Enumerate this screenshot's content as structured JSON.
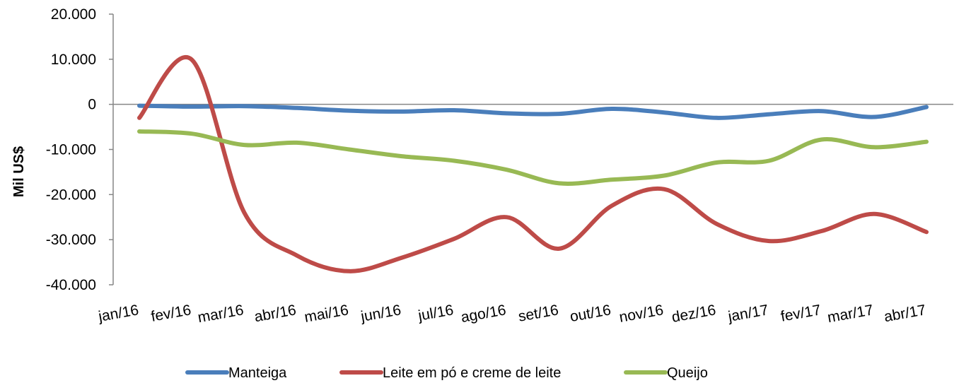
{
  "chart_data": {
    "type": "line",
    "ylabel": "Mil US$",
    "ylim": [
      -40000,
      20000
    ],
    "yticks": [
      20000,
      10000,
      0,
      -10000,
      -20000,
      -30000,
      -40000
    ],
    "ytick_labels": [
      "20.000",
      "10.000",
      "0",
      "-10.000",
      "-20.000",
      "-30.000",
      "-40.000"
    ],
    "categories": [
      "jan/16",
      "fev/16",
      "mar/16",
      "abr/16",
      "mai/16",
      "jun/16",
      "jul/16",
      "ago/16",
      "set/16",
      "out/16",
      "nov/16",
      "dez/16",
      "jan/17",
      "fev/17",
      "mar/17",
      "abr/17"
    ],
    "legend_position": "bottom",
    "series": [
      {
        "name": "Manteiga",
        "color": "#4a7ebb",
        "values": [
          -300,
          -500,
          -400,
          -800,
          -1400,
          -1600,
          -1300,
          -2000,
          -2100,
          -1000,
          -1800,
          -3000,
          -2200,
          -1500,
          -2800,
          -600
        ]
      },
      {
        "name": "Leite em pó e creme de leite",
        "color": "#be4b48",
        "values": [
          -3000,
          9900,
          -24000,
          -33500,
          -37000,
          -34000,
          -29800,
          -25000,
          -32000,
          -22500,
          -18800,
          -26500,
          -30300,
          -28100,
          -24300,
          -28300
        ]
      },
      {
        "name": "Queijo",
        "color": "#98b954",
        "values": [
          -6000,
          -6500,
          -9000,
          -8500,
          -10000,
          -11500,
          -12500,
          -14500,
          -17500,
          -16700,
          -15800,
          -12900,
          -12500,
          -7800,
          -9500,
          -8300
        ]
      }
    ]
  }
}
